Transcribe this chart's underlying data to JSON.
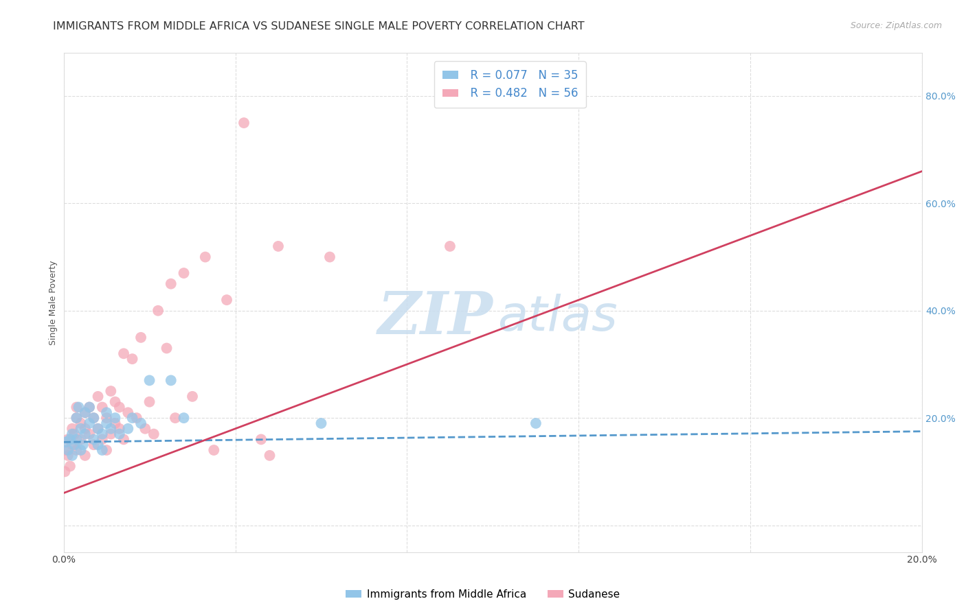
{
  "title": "IMMIGRANTS FROM MIDDLE AFRICA VS SUDANESE SINGLE MALE POVERTY CORRELATION CHART",
  "source": "Source: ZipAtlas.com",
  "ylabel": "Single Male Poverty",
  "xlim": [
    0.0,
    0.2
  ],
  "ylim": [
    -0.05,
    0.88
  ],
  "x_ticks": [
    0.0,
    0.04,
    0.08,
    0.12,
    0.16,
    0.2
  ],
  "x_tick_labels": [
    "0.0%",
    "",
    "",
    "",
    "",
    "20.0%"
  ],
  "y_ticks": [
    0.0,
    0.2,
    0.4,
    0.6,
    0.8
  ],
  "y_tick_labels": [
    "",
    "20.0%",
    "40.0%",
    "60.0%",
    "80.0%"
  ],
  "legend_R": [
    "R = 0.077",
    "R = 0.482"
  ],
  "legend_N": [
    "N = 35",
    "N = 56"
  ],
  "color_blue": "#92C5E8",
  "color_pink": "#F4A8B8",
  "line_color_blue": "#5599CC",
  "line_color_pink": "#D04060",
  "watermark_zip": "ZIP",
  "watermark_atlas": "atlas",
  "bottom_legend_labels": [
    "Immigrants from Middle Africa",
    "Sudanese"
  ],
  "title_fontsize": 11.5,
  "axis_label_fontsize": 9,
  "tick_fontsize": 10,
  "blue_scatter_x": [
    0.0005,
    0.001,
    0.0015,
    0.002,
    0.002,
    0.0025,
    0.003,
    0.003,
    0.0035,
    0.004,
    0.004,
    0.0045,
    0.005,
    0.005,
    0.006,
    0.006,
    0.007,
    0.007,
    0.008,
    0.008,
    0.009,
    0.009,
    0.01,
    0.01,
    0.011,
    0.012,
    0.013,
    0.015,
    0.016,
    0.018,
    0.02,
    0.025,
    0.028,
    0.06,
    0.11
  ],
  "blue_scatter_y": [
    0.155,
    0.14,
    0.16,
    0.13,
    0.17,
    0.15,
    0.2,
    0.16,
    0.22,
    0.14,
    0.18,
    0.15,
    0.21,
    0.17,
    0.22,
    0.19,
    0.2,
    0.16,
    0.18,
    0.15,
    0.17,
    0.14,
    0.19,
    0.21,
    0.18,
    0.2,
    0.17,
    0.18,
    0.2,
    0.19,
    0.27,
    0.27,
    0.2,
    0.19,
    0.19
  ],
  "pink_scatter_x": [
    0.0003,
    0.0005,
    0.001,
    0.001,
    0.0015,
    0.002,
    0.002,
    0.0025,
    0.003,
    0.003,
    0.003,
    0.004,
    0.004,
    0.005,
    0.005,
    0.005,
    0.006,
    0.006,
    0.007,
    0.007,
    0.008,
    0.008,
    0.009,
    0.009,
    0.01,
    0.01,
    0.011,
    0.011,
    0.012,
    0.012,
    0.013,
    0.013,
    0.014,
    0.014,
    0.015,
    0.016,
    0.017,
    0.018,
    0.019,
    0.02,
    0.021,
    0.022,
    0.024,
    0.025,
    0.026,
    0.028,
    0.03,
    0.033,
    0.035,
    0.038,
    0.042,
    0.046,
    0.048,
    0.05,
    0.062,
    0.09
  ],
  "pink_scatter_y": [
    0.1,
    0.14,
    0.13,
    0.16,
    0.11,
    0.15,
    0.18,
    0.17,
    0.2,
    0.14,
    0.22,
    0.16,
    0.19,
    0.13,
    0.18,
    0.21,
    0.17,
    0.22,
    0.15,
    0.2,
    0.24,
    0.18,
    0.16,
    0.22,
    0.14,
    0.2,
    0.25,
    0.17,
    0.19,
    0.23,
    0.22,
    0.18,
    0.32,
    0.16,
    0.21,
    0.31,
    0.2,
    0.35,
    0.18,
    0.23,
    0.17,
    0.4,
    0.33,
    0.45,
    0.2,
    0.47,
    0.24,
    0.5,
    0.14,
    0.42,
    0.75,
    0.16,
    0.13,
    0.52,
    0.5,
    0.52
  ],
  "pink_line_x0": 0.0,
  "pink_line_y0": 0.06,
  "pink_line_x1": 0.2,
  "pink_line_y1": 0.66,
  "blue_line_x0": 0.0,
  "blue_line_y0": 0.155,
  "blue_line_x1": 0.2,
  "blue_line_y1": 0.175
}
